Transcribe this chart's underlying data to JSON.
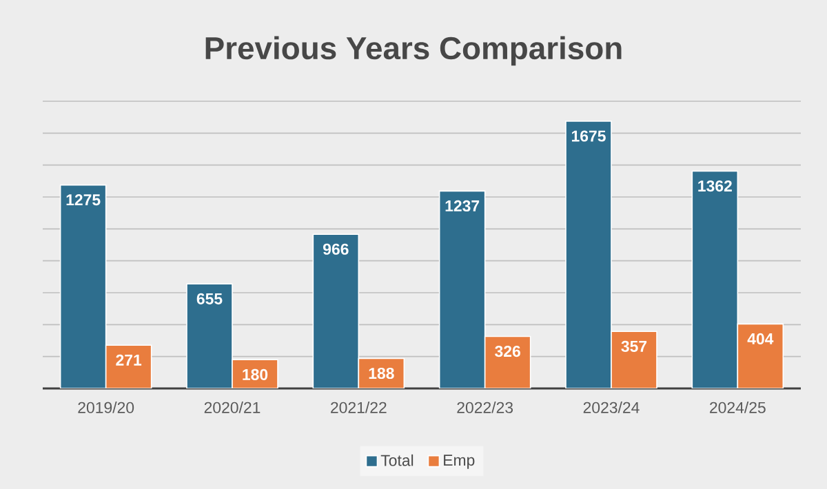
{
  "chart_data": {
    "type": "bar",
    "title": "Previous Years Comparison",
    "categories": [
      "2019/20",
      "2020/21",
      "2021/22",
      "2022/23",
      "2023/24",
      "2024/25"
    ],
    "series": [
      {
        "name": "Total",
        "color": "#2e6e8e",
        "values": [
          1275,
          655,
          966,
          1237,
          1675,
          1362
        ]
      },
      {
        "name": "Emp",
        "color": "#e97d3e",
        "values": [
          271,
          180,
          188,
          326,
          357,
          404
        ]
      }
    ],
    "ylim": [
      0,
      1800
    ],
    "yticks": [
      {
        "value": 0,
        "label": null
      },
      {
        "value": 200,
        "label": null
      },
      {
        "value": 400,
        "label": null
      },
      {
        "value": 600,
        "label": null
      },
      {
        "value": 800,
        "label": null
      },
      {
        "value": 1000,
        "label": null
      },
      {
        "value": 1200,
        "label": null
      },
      {
        "value": 1400,
        "label": null
      },
      {
        "value": 1600,
        "label": null
      },
      {
        "value": 1800,
        "label": null
      }
    ],
    "tick_labels": "x",
    "grid": "y",
    "legend": "bottom",
    "data_labels": true
  }
}
